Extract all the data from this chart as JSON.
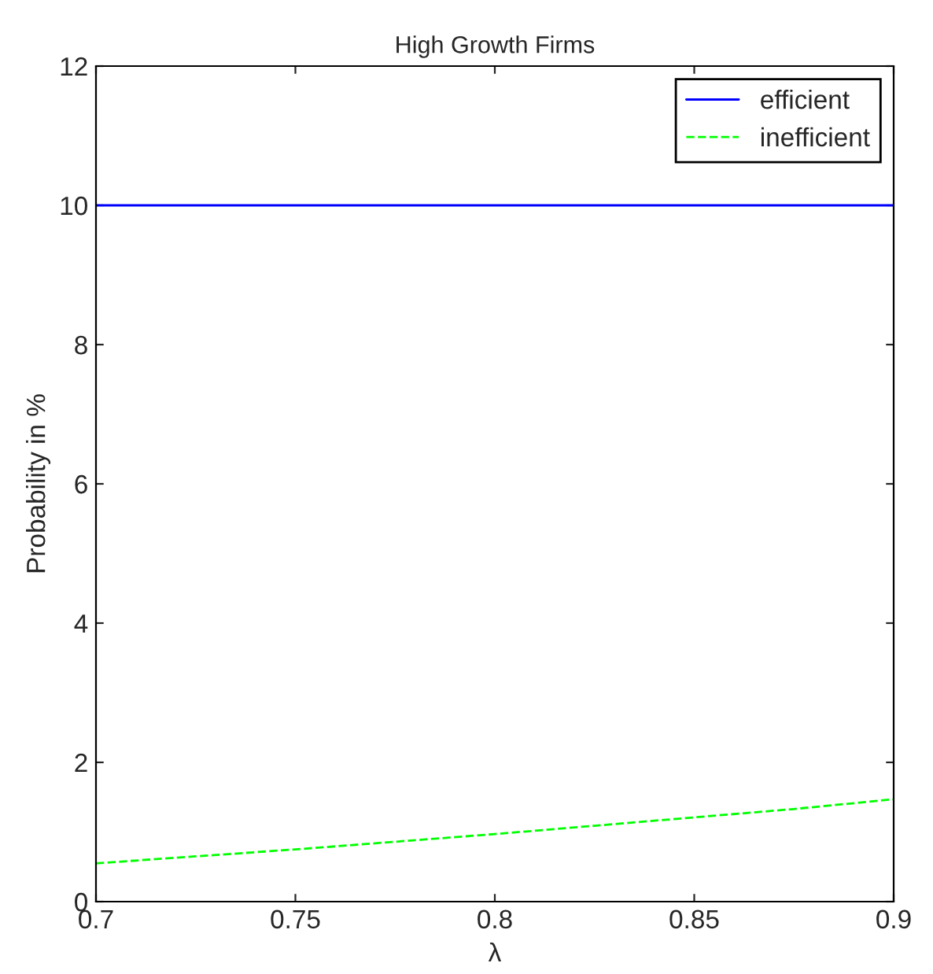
{
  "chart_data": {
    "type": "line",
    "title": "High Growth Firms",
    "xlabel": "λ",
    "ylabel": "Probability in %",
    "xlim": [
      0.7,
      0.9
    ],
    "xticks": [
      0.7,
      0.75,
      0.8,
      0.85,
      0.9
    ],
    "ylim": [
      0,
      12
    ],
    "yticks": [
      0,
      2,
      4,
      6,
      8,
      10,
      12
    ],
    "grid": false,
    "legend": "top right",
    "series": [
      {
        "name": "efficient",
        "color": "#0000ff",
        "line_style": "solid",
        "x": [
          0.7,
          0.9
        ],
        "values": [
          10,
          10
        ]
      },
      {
        "name": "inefficient",
        "color": "#00ff00",
        "line_style": "dashed",
        "x": [
          0.7,
          0.725,
          0.75,
          0.775,
          0.8,
          0.825,
          0.85,
          0.875,
          0.9
        ],
        "values": [
          0.55,
          0.65,
          0.75,
          0.86,
          0.97,
          1.09,
          1.21,
          1.33,
          1.47
        ]
      }
    ]
  }
}
